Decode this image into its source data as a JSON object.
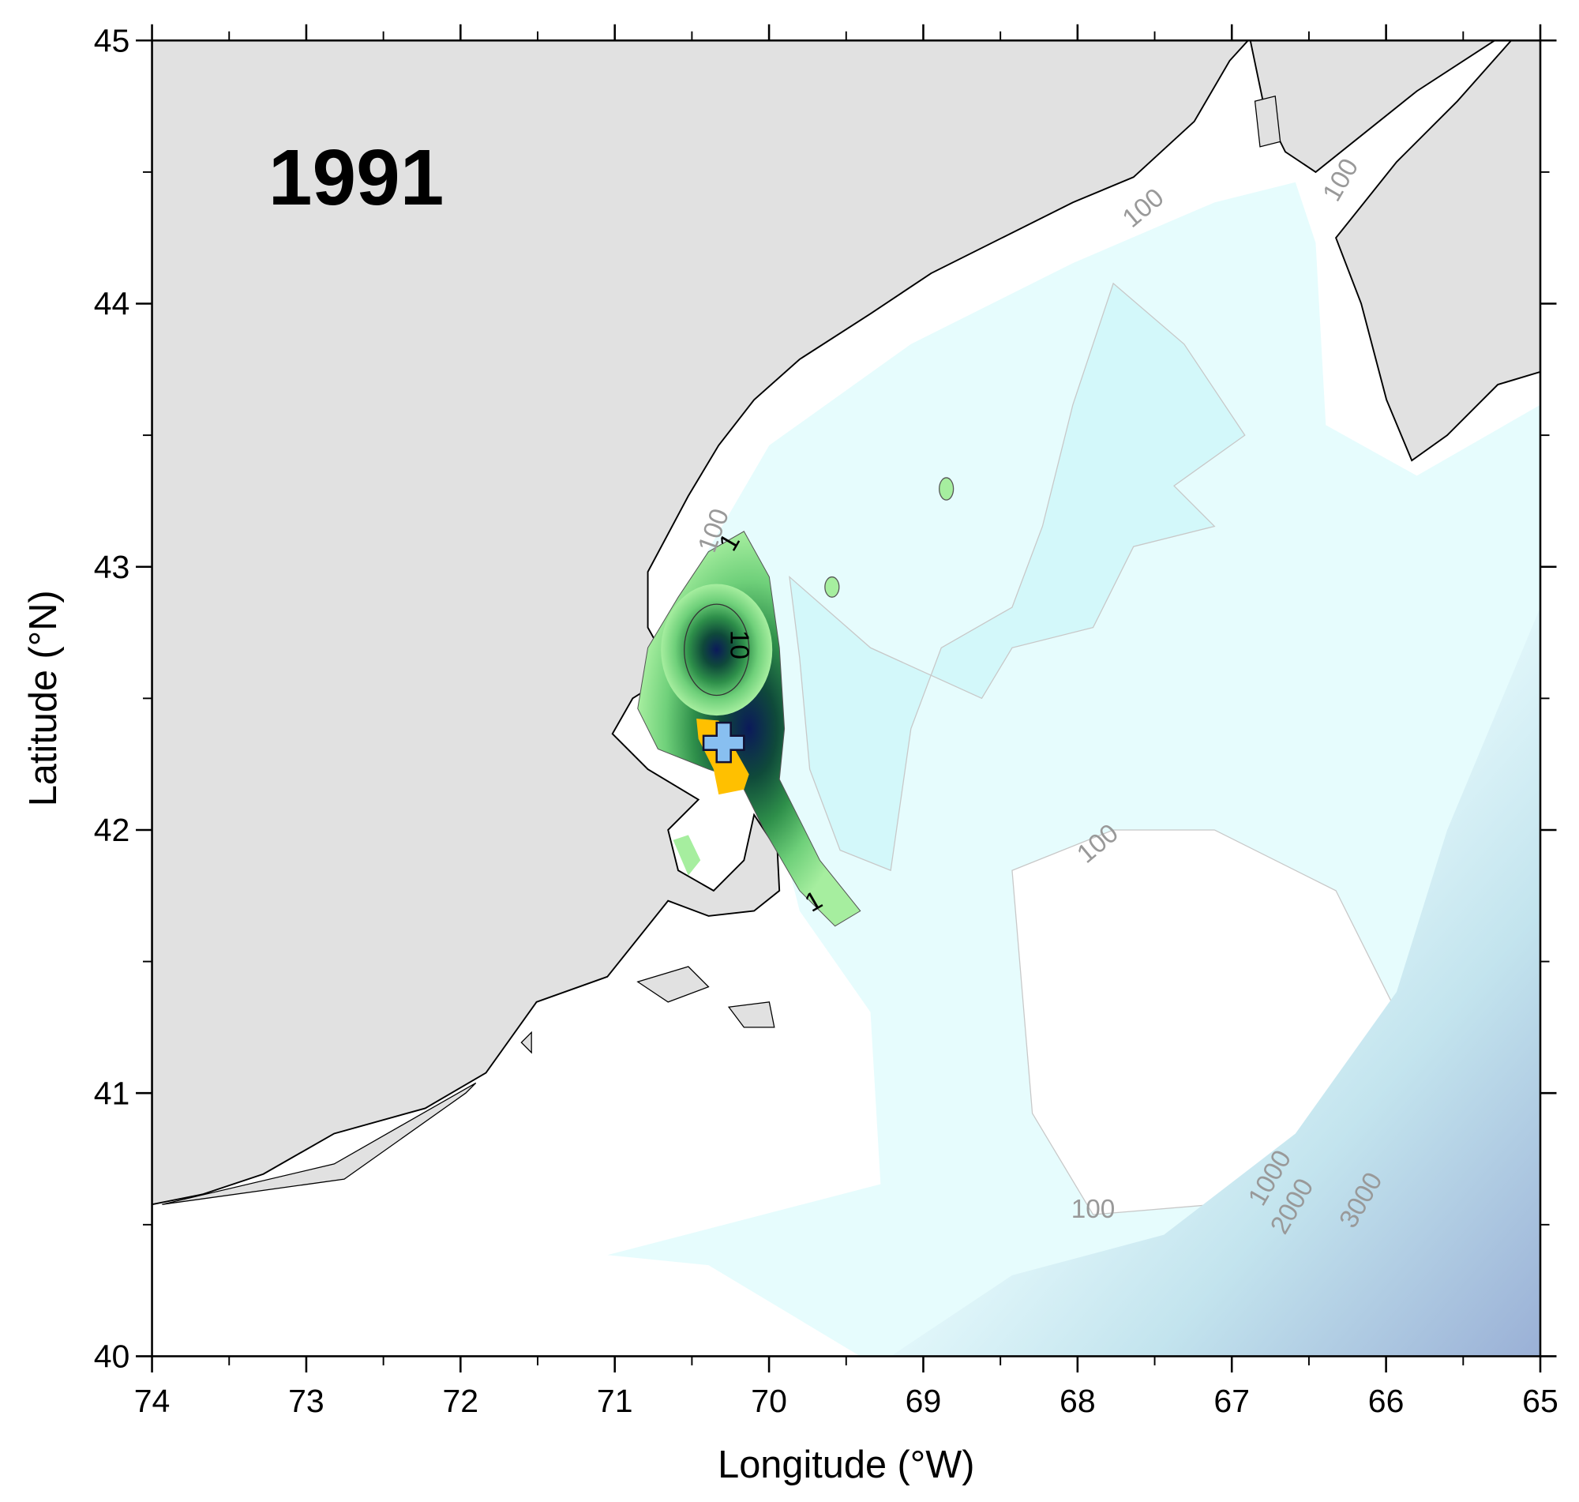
{
  "map": {
    "title": "1991",
    "x_label": "Longitude (°W)",
    "y_label": "Latitude (°N)",
    "xlim": [
      74,
      65
    ],
    "ylim": [
      40,
      45
    ],
    "xticks": [
      74,
      73,
      72,
      71,
      70,
      69,
      68,
      67,
      66,
      65
    ],
    "yticks": [
      40,
      41,
      42,
      43,
      44,
      45
    ],
    "contour_labels": [
      "100",
      "100",
      "100",
      "100",
      "100",
      "1",
      "1",
      "10",
      "1000",
      "2000",
      "3000"
    ]
  }
}
